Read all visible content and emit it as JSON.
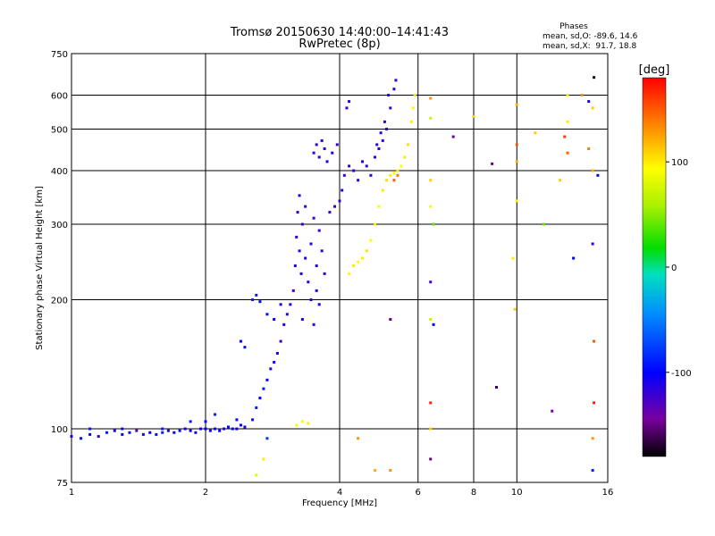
{
  "chart_data": {
    "type": "scatter",
    "title": "Tromsø 20150630 14:40:00–14:41:43",
    "subtitle": "RwPretec (8p)",
    "xlabel": "Frequency [MHz]",
    "ylabel": "Stationary phase Virtual Height [km]",
    "x_scale": "log",
    "y_scale": "log",
    "xlim": [
      1,
      16
    ],
    "ylim": [
      75,
      750
    ],
    "x_ticks": [
      1,
      2,
      4,
      6,
      8,
      10,
      16
    ],
    "x_tick_labels": [
      "1",
      "2",
      "4",
      "6",
      "8",
      "10",
      "16"
    ],
    "y_ticks": [
      75,
      100,
      200,
      300,
      400,
      500,
      600,
      750
    ],
    "y_tick_labels": [
      "75",
      "100",
      "200",
      "300",
      "400",
      "500",
      "600",
      "750"
    ],
    "grid": true,
    "phases_legend": {
      "title": "Phases",
      "line_o": "mean, sd,O: -89.6, 14.6",
      "line_x": "mean, sd,X:  91.7, 18.8"
    },
    "colorbar": {
      "label": "[deg]",
      "range": [
        -180,
        180
      ],
      "ticks": [
        -100,
        0,
        100
      ],
      "tick_labels": [
        "-100",
        "0",
        "100"
      ],
      "colormap": "rainbow"
    },
    "series": [
      {
        "points": [
          [
            1.0,
            96,
            -110
          ],
          [
            1.05,
            95,
            -95
          ],
          [
            1.1,
            97,
            -100
          ],
          [
            1.15,
            96,
            -120
          ],
          [
            1.2,
            98,
            -90
          ],
          [
            1.25,
            99,
            -110
          ],
          [
            1.3,
            97,
            -100
          ],
          [
            1.35,
            98,
            -95
          ],
          [
            1.4,
            99,
            -130
          ],
          [
            1.45,
            97,
            -110
          ],
          [
            1.5,
            98,
            -100
          ],
          [
            1.55,
            97,
            -105
          ],
          [
            1.6,
            98,
            -90
          ],
          [
            1.65,
            99,
            -110
          ],
          [
            1.7,
            98,
            -100
          ],
          [
            1.75,
            99,
            -95
          ],
          [
            1.8,
            100,
            -110
          ],
          [
            1.85,
            99,
            -100
          ],
          [
            1.9,
            98,
            -105
          ],
          [
            1.95,
            100,
            -115
          ],
          [
            2.0,
            100,
            -100
          ],
          [
            2.05,
            99,
            -110
          ],
          [
            2.1,
            100,
            -95
          ],
          [
            2.15,
            99,
            -100
          ],
          [
            2.2,
            100,
            -110
          ],
          [
            2.25,
            101,
            -100
          ],
          [
            2.3,
            100,
            -95
          ],
          [
            2.35,
            100,
            -110
          ],
          [
            2.4,
            102,
            -100
          ],
          [
            2.45,
            101,
            -110
          ],
          [
            1.1,
            100,
            -90
          ],
          [
            1.3,
            100,
            -95
          ],
          [
            1.6,
            100,
            -90
          ],
          [
            1.85,
            104,
            -90
          ],
          [
            2.0,
            104,
            -95
          ],
          [
            2.1,
            108,
            -90
          ],
          [
            2.35,
            105,
            -95
          ],
          [
            2.55,
            105,
            -95
          ],
          [
            2.6,
            112,
            -90
          ],
          [
            2.65,
            118,
            -100
          ],
          [
            2.7,
            124,
            -95
          ],
          [
            2.75,
            130,
            -100
          ],
          [
            2.8,
            138,
            -110
          ],
          [
            2.85,
            143,
            -105
          ],
          [
            2.9,
            150,
            -110
          ],
          [
            2.95,
            160,
            -120
          ],
          [
            3.0,
            175,
            -110
          ],
          [
            3.05,
            185,
            -120
          ],
          [
            3.1,
            195,
            -110
          ],
          [
            2.4,
            160,
            -100
          ],
          [
            2.45,
            155,
            -95
          ],
          [
            2.55,
            200,
            -90
          ],
          [
            2.6,
            205,
            -90
          ],
          [
            2.65,
            198,
            -95
          ],
          [
            2.75,
            185,
            -95
          ],
          [
            2.85,
            180,
            -100
          ],
          [
            2.95,
            195,
            -110
          ],
          [
            3.15,
            210,
            -120
          ],
          [
            3.18,
            240,
            -115
          ],
          [
            3.2,
            280,
            -120
          ],
          [
            3.22,
            320,
            -120
          ],
          [
            3.25,
            260,
            -115
          ],
          [
            3.28,
            230,
            -110
          ],
          [
            3.3,
            300,
            -120
          ],
          [
            3.35,
            250,
            -115
          ],
          [
            3.4,
            220,
            -120
          ],
          [
            3.45,
            270,
            -115
          ],
          [
            3.5,
            310,
            -120
          ],
          [
            3.55,
            240,
            -115
          ],
          [
            3.6,
            290,
            -120
          ],
          [
            3.65,
            260,
            -115
          ],
          [
            3.7,
            230,
            -120
          ],
          [
            3.25,
            350,
            -115
          ],
          [
            3.35,
            330,
            -120
          ],
          [
            3.45,
            200,
            -110
          ],
          [
            3.55,
            210,
            -115
          ],
          [
            3.6,
            195,
            -110
          ],
          [
            3.3,
            180,
            -110
          ],
          [
            3.5,
            175,
            -115
          ],
          [
            3.5,
            440,
            -120
          ],
          [
            3.55,
            460,
            -115
          ],
          [
            3.6,
            430,
            -120
          ],
          [
            3.65,
            470,
            -115
          ],
          [
            3.7,
            450,
            -120
          ],
          [
            3.75,
            420,
            -115
          ],
          [
            3.85,
            440,
            -115
          ],
          [
            3.95,
            460,
            -120
          ],
          [
            3.8,
            320,
            -120
          ],
          [
            3.9,
            330,
            -115
          ],
          [
            4.0,
            340,
            -120
          ],
          [
            4.05,
            360,
            -115
          ],
          [
            4.1,
            390,
            -120
          ],
          [
            4.2,
            410,
            -120
          ],
          [
            4.3,
            400,
            -115
          ],
          [
            4.4,
            380,
            -120
          ],
          [
            4.5,
            420,
            -115
          ],
          [
            4.6,
            410,
            -120
          ],
          [
            4.7,
            390,
            -115
          ],
          [
            4.8,
            430,
            -120
          ],
          [
            4.9,
            450,
            -115
          ],
          [
            5.0,
            470,
            -120
          ],
          [
            5.1,
            500,
            -115
          ],
          [
            5.2,
            560,
            -120
          ],
          [
            5.3,
            620,
            -115
          ],
          [
            5.35,
            650,
            -120
          ],
          [
            5.15,
            600,
            -115
          ],
          [
            5.05,
            520,
            -120
          ],
          [
            4.95,
            490,
            -115
          ],
          [
            4.85,
            460,
            -120
          ],
          [
            4.15,
            560,
            -120
          ],
          [
            4.2,
            580,
            -115
          ],
          [
            4.2,
            230,
            95
          ],
          [
            4.3,
            240,
            100
          ],
          [
            4.4,
            245,
            95
          ],
          [
            4.5,
            250,
            100
          ],
          [
            4.6,
            260,
            105
          ],
          [
            4.7,
            275,
            95
          ],
          [
            4.8,
            300,
            100
          ],
          [
            4.9,
            330,
            95
          ],
          [
            5.0,
            360,
            100
          ],
          [
            5.1,
            380,
            105
          ],
          [
            5.2,
            390,
            100
          ],
          [
            5.3,
            395,
            95
          ],
          [
            5.4,
            400,
            100
          ],
          [
            5.5,
            410,
            95
          ],
          [
            5.6,
            430,
            100
          ],
          [
            5.7,
            460,
            105
          ],
          [
            5.8,
            520,
            100
          ],
          [
            5.85,
            560,
            95
          ],
          [
            5.9,
            600,
            100
          ],
          [
            5.3,
            380,
            150
          ],
          [
            5.4,
            390,
            140
          ],
          [
            3.2,
            102,
            90
          ],
          [
            3.3,
            104,
            95
          ],
          [
            3.4,
            103,
            100
          ],
          [
            6.4,
            590,
            130
          ],
          [
            6.4,
            530,
            70
          ],
          [
            6.4,
            380,
            110
          ],
          [
            6.4,
            330,
            90
          ],
          [
            6.5,
            300,
            40
          ],
          [
            6.4,
            220,
            -130
          ],
          [
            6.4,
            180,
            70
          ],
          [
            6.4,
            115,
            170
          ],
          [
            6.4,
            100,
            110
          ],
          [
            6.4,
            85,
            -150
          ],
          [
            6.5,
            175,
            -100
          ],
          [
            7.2,
            480,
            -140
          ],
          [
            8.0,
            535,
            110
          ],
          [
            8.8,
            415,
            -150
          ],
          [
            9.0,
            125,
            -160
          ],
          [
            9.8,
            250,
            100
          ],
          [
            9.9,
            190,
            110
          ],
          [
            10.0,
            340,
            100
          ],
          [
            10.0,
            420,
            120
          ],
          [
            10.0,
            460,
            150
          ],
          [
            10.0,
            570,
            120
          ],
          [
            11.0,
            490,
            110
          ],
          [
            11.5,
            300,
            40
          ],
          [
            12.0,
            110,
            -140
          ],
          [
            12.5,
            380,
            110
          ],
          [
            12.8,
            480,
            160
          ],
          [
            13.0,
            440,
            150
          ],
          [
            13.0,
            520,
            100
          ],
          [
            13.0,
            600,
            100
          ],
          [
            13.4,
            250,
            -100
          ],
          [
            14.0,
            600,
            130
          ],
          [
            14.5,
            580,
            -110
          ],
          [
            14.5,
            450,
            140
          ],
          [
            14.8,
            560,
            110
          ],
          [
            14.8,
            400,
            120
          ],
          [
            14.8,
            270,
            -120
          ],
          [
            14.9,
            160,
            150
          ],
          [
            14.9,
            115,
            170
          ],
          [
            14.8,
            95,
            130
          ],
          [
            14.8,
            80,
            -90
          ],
          [
            14.9,
            660,
            -170
          ],
          [
            15.2,
            390,
            -100
          ],
          [
            5.2,
            180,
            -150
          ],
          [
            5.2,
            80,
            130
          ],
          [
            4.4,
            95,
            130
          ],
          [
            4.8,
            80,
            120
          ],
          [
            2.7,
            85,
            100
          ],
          [
            2.75,
            95,
            -80
          ],
          [
            2.6,
            78,
            80
          ]
        ]
      }
    ]
  }
}
